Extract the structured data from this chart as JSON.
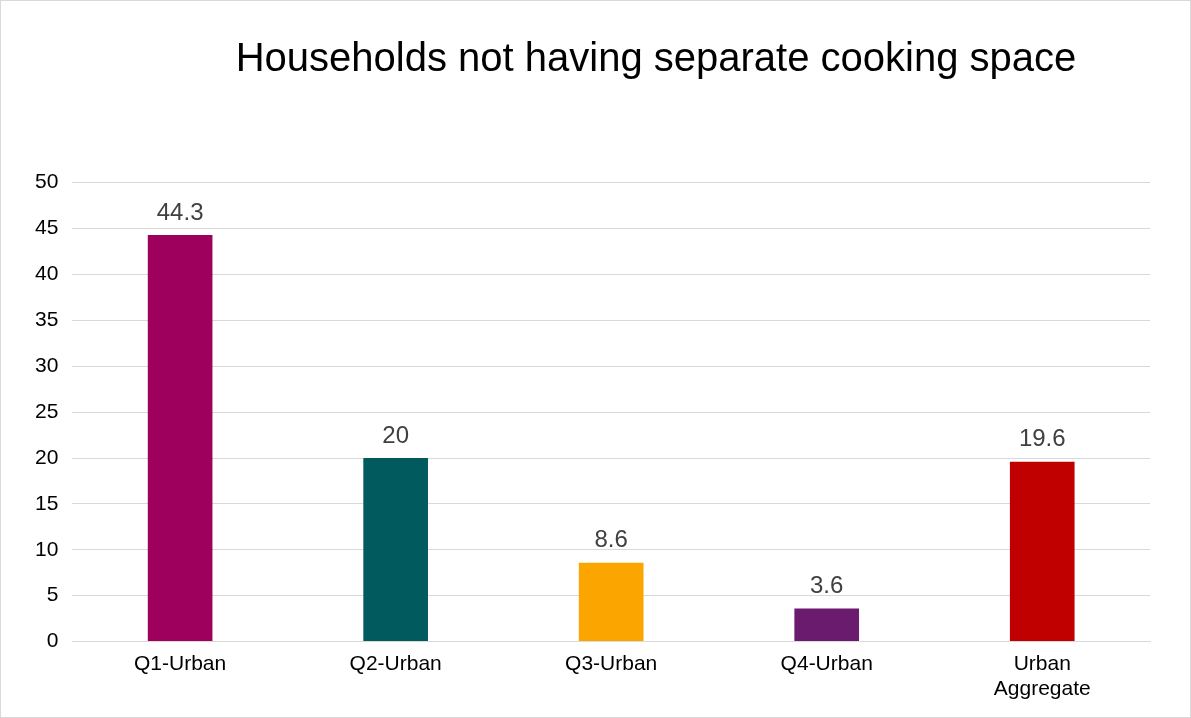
{
  "chart_data": {
    "type": "bar",
    "title": "Households not having separate cooking space",
    "categories": [
      "Q1-Urban",
      "Q2-Urban",
      "Q3-Urban",
      "Q4-Urban",
      "Urban Aggregate"
    ],
    "values": [
      44.3,
      20,
      8.6,
      3.6,
      19.6
    ],
    "colors": [
      "#9e005d",
      "#005a5e",
      "#fba600",
      "#6b1b6e",
      "#c00000"
    ],
    "ylim": [
      0,
      50
    ],
    "yticks": [
      0,
      5,
      10,
      15,
      20,
      25,
      30,
      35,
      40,
      45,
      50
    ],
    "grid": "y",
    "data_labels": true,
    "legend": false
  }
}
